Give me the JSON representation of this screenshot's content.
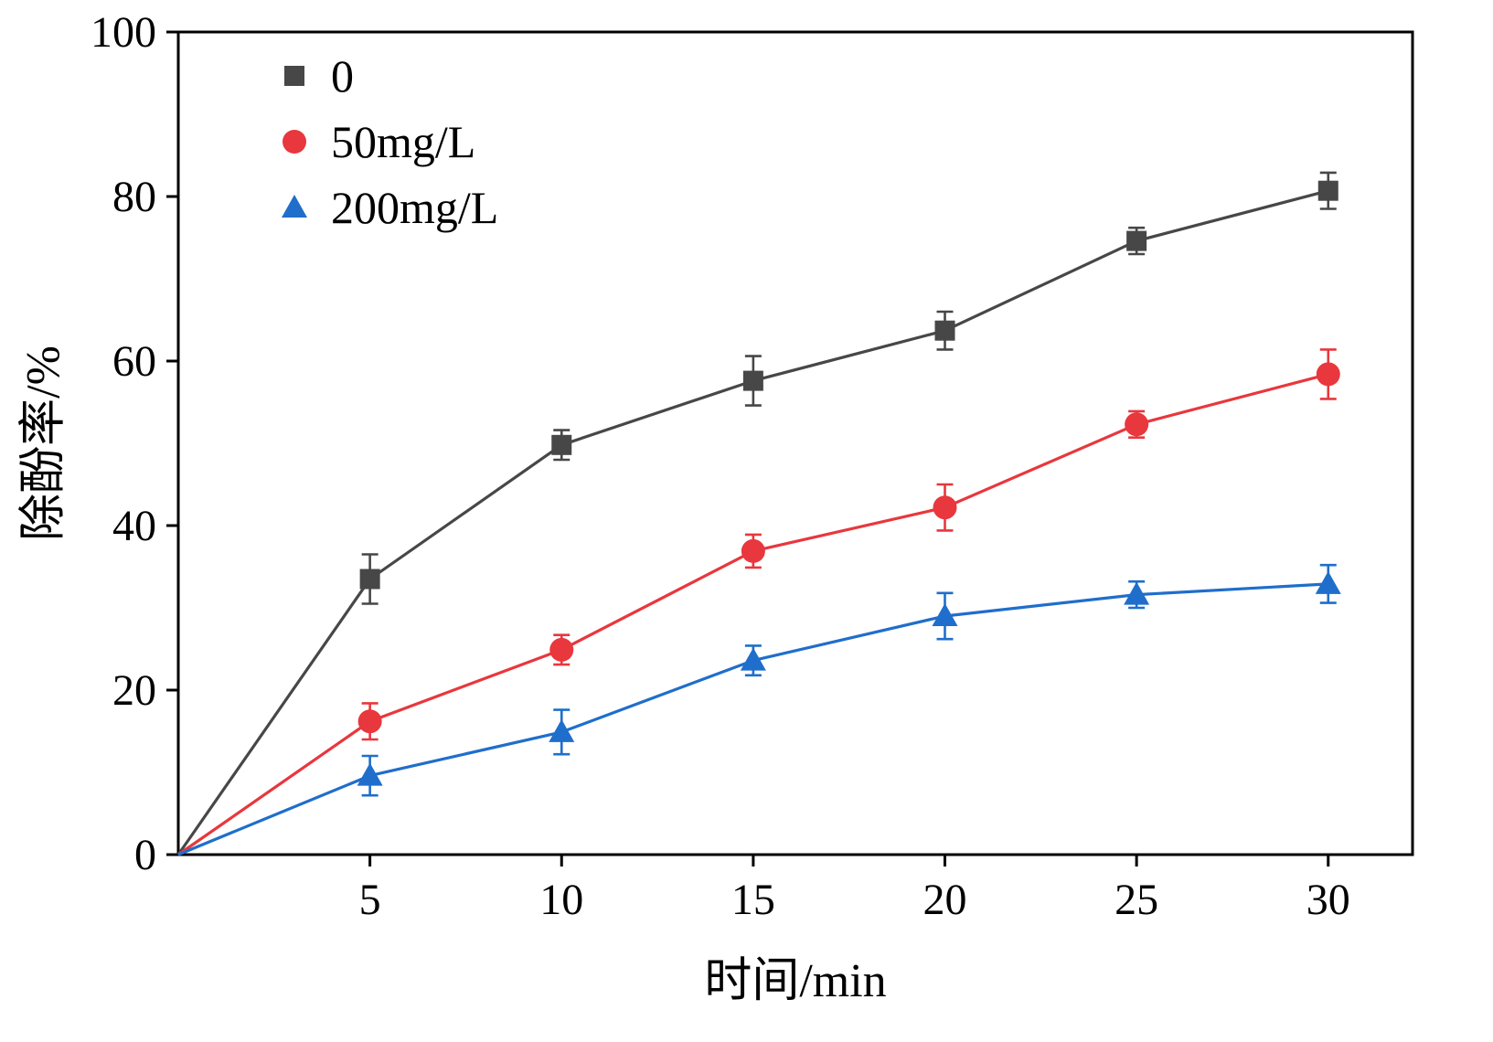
{
  "chart_data": {
    "type": "line",
    "title": "",
    "xlabel": "时间/min",
    "ylabel": "除酚率/%",
    "xlim": [
      0,
      32.2
    ],
    "ylim": [
      0,
      100
    ],
    "xticks": [
      5,
      10,
      15,
      20,
      25,
      30
    ],
    "yticks": [
      0,
      20,
      40,
      60,
      80,
      100
    ],
    "x": [
      0,
      5,
      10,
      15,
      20,
      25,
      30
    ],
    "series": [
      {
        "name": "0",
        "marker": "square",
        "color": "#474747",
        "values": [
          0,
          33.5,
          49.8,
          57.6,
          63.7,
          74.6,
          80.7
        ],
        "errors": [
          0,
          3.0,
          1.8,
          3.0,
          2.3,
          1.6,
          2.2
        ]
      },
      {
        "name": "50mg/L",
        "marker": "circle",
        "color": "#e8373d",
        "values": [
          0,
          16.2,
          24.9,
          36.9,
          42.2,
          52.3,
          58.4
        ],
        "errors": [
          0,
          2.2,
          1.8,
          2.0,
          2.8,
          1.6,
          3.0
        ]
      },
      {
        "name": "200mg/L",
        "marker": "triangle",
        "color": "#1f6ecb",
        "values": [
          0,
          9.6,
          14.9,
          23.6,
          29.0,
          31.6,
          32.9
        ],
        "errors": [
          0,
          2.4,
          2.7,
          1.8,
          2.8,
          1.6,
          2.3
        ]
      }
    ],
    "legend_position": "top-left",
    "grid": false,
    "axis_color": "#000000"
  }
}
